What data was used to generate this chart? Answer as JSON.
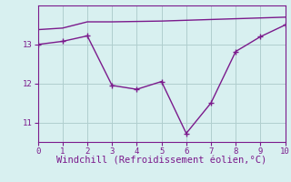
{
  "line1_x": [
    0,
    1,
    2,
    3,
    4,
    5,
    6,
    7,
    8,
    9,
    10
  ],
  "line1_y": [
    13.38,
    13.42,
    13.58,
    13.58,
    13.59,
    13.6,
    13.62,
    13.64,
    13.66,
    13.68,
    13.7
  ],
  "line2_x": [
    0,
    1,
    2,
    3,
    4,
    5,
    6,
    7,
    8,
    9,
    10
  ],
  "line2_y": [
    13.0,
    13.08,
    13.22,
    11.95,
    11.85,
    12.05,
    10.72,
    11.5,
    12.82,
    13.2,
    13.5
  ],
  "line_color": "#7b1a8c",
  "bg_color": "#d8f0f0",
  "grid_color": "#b0cece",
  "xlabel": "Windchill (Refroidissement éolien,°C)",
  "ylabel": "",
  "xlim": [
    0,
    10
  ],
  "ylim": [
    10.5,
    14.0
  ],
  "yticks": [
    11,
    12,
    13
  ],
  "xticks": [
    0,
    1,
    2,
    3,
    4,
    5,
    6,
    7,
    8,
    9,
    10
  ],
  "marker": "+",
  "markersize": 4,
  "linewidth": 1.0,
  "xlabel_color": "#7b1a8c",
  "tick_color": "#7b1a8c",
  "axis_color": "#7b1a8c",
  "xlabel_fontsize": 7.5
}
